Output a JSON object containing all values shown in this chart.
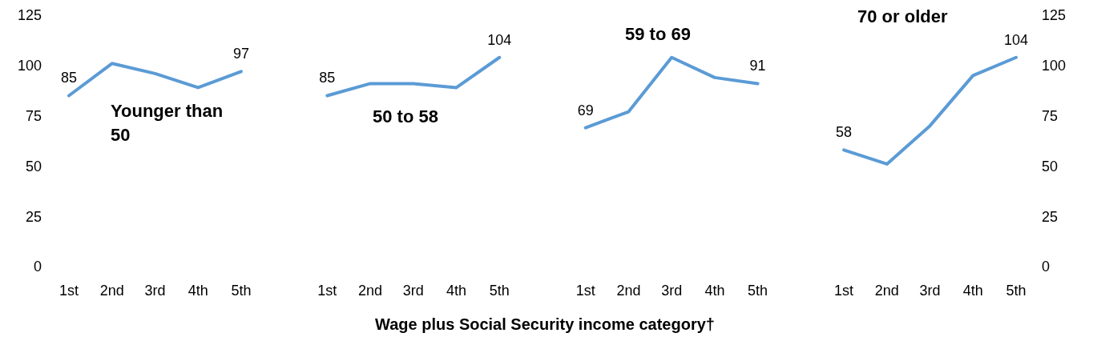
{
  "chart_data": {
    "type": "line",
    "xlabel": "Wage plus Social Security income category†",
    "categories": [
      "1st",
      "2nd",
      "3rd",
      "4th",
      "5th",
      null,
      "1st",
      "2nd",
      "3rd",
      "4th",
      "5th",
      null,
      "1st",
      "2nd",
      "3rd",
      "4th",
      "5th",
      null,
      "1st",
      "2nd",
      "3rd",
      "4th",
      "5th"
    ],
    "series": [
      {
        "color": "#5b9bd5",
        "values": [
          85,
          101,
          96,
          89,
          97,
          null,
          85,
          91,
          91,
          89,
          104,
          null,
          69,
          77,
          104,
          94,
          91,
          null,
          58,
          51,
          70,
          95,
          104
        ],
        "value_labels": [
          "85",
          null,
          null,
          null,
          "97",
          null,
          "85",
          null,
          null,
          null,
          "104",
          null,
          "69",
          null,
          null,
          null,
          "91",
          null,
          "58",
          null,
          null,
          null,
          "104"
        ]
      }
    ],
    "annotations": [
      "Younger than 50",
      "50 to 58",
      "59 to 69",
      "70 or older"
    ],
    "ylim": [
      0,
      125
    ],
    "yticks": [
      0,
      25,
      50,
      75,
      100,
      125
    ],
    "y2lim": [
      0,
      125
    ],
    "y2ticks": [
      0,
      25,
      50,
      75,
      100,
      125
    ],
    "grid": false,
    "marker": "none",
    "line_style": "solid"
  }
}
